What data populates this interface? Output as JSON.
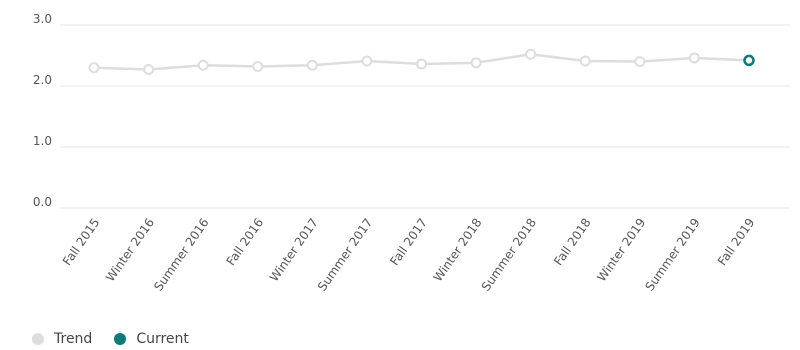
{
  "chart_data": {
    "type": "line",
    "categories": [
      "Fall 2015",
      "Winter 2016",
      "Summer 2016",
      "Fall 2016",
      "Winter 2017",
      "Summer 2017",
      "Fall 2017",
      "Winter 2018",
      "Summer 2018",
      "Fall 2018",
      "Winter 2019",
      "Summer 2019",
      "Fall 2019"
    ],
    "series": [
      {
        "name": "Trend",
        "values": [
          2.3,
          2.27,
          2.34,
          2.32,
          2.34,
          2.41,
          2.36,
          2.38,
          2.52,
          2.41,
          2.4,
          2.46,
          2.42
        ]
      }
    ],
    "current_index": 12,
    "ylim": [
      0,
      3
    ],
    "yticks": [
      "0.0",
      "1.0",
      "2.0",
      "3.0"
    ],
    "grid": true,
    "legend_placement": "bottom-left",
    "colors": {
      "trend": "#dddddd",
      "current": "#0b7a7a",
      "grid": "#e6e6e6"
    }
  },
  "legend": {
    "trend_label": "Trend",
    "current_label": "Current"
  }
}
